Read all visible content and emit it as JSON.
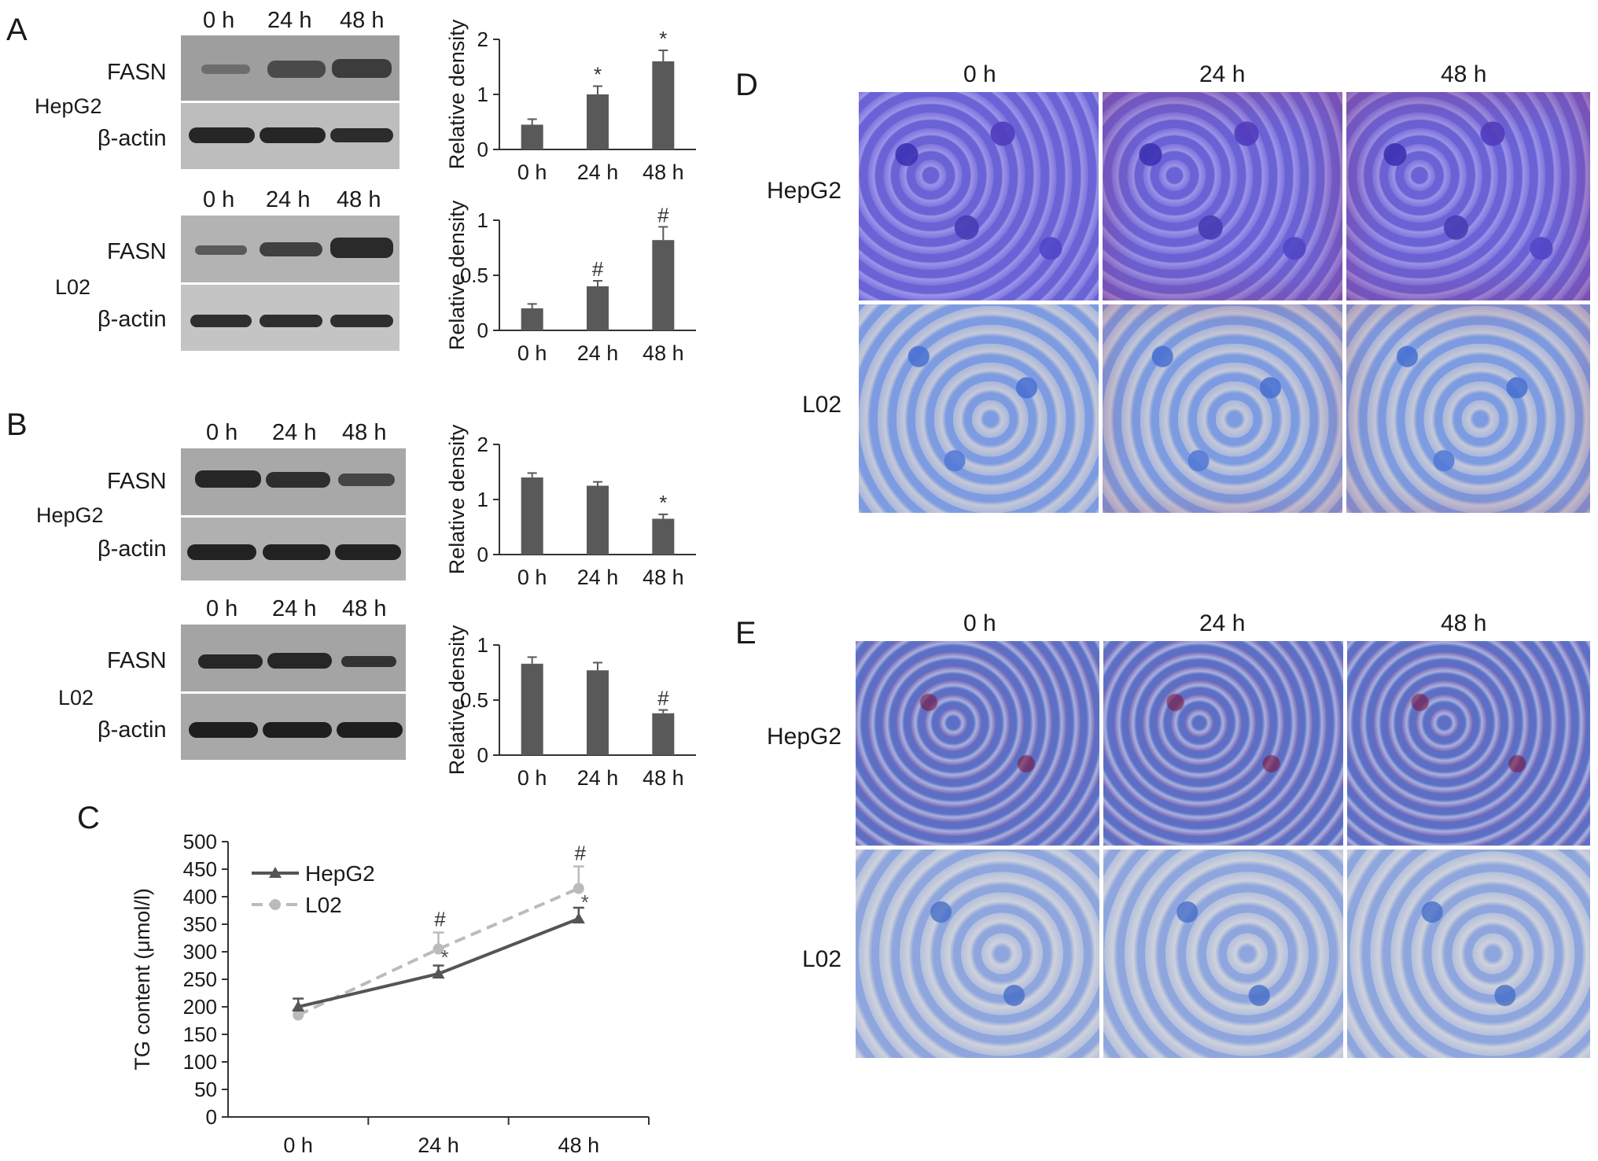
{
  "panels": {
    "A": "A",
    "B": "B",
    "C": "C",
    "D": "D",
    "E": "E"
  },
  "timepoints": [
    "0 h",
    "24 h",
    "48 h"
  ],
  "proteins": {
    "top": "FASN",
    "bottom": "β-actin"
  },
  "cells": {
    "hep": "HepG2",
    "l02": "L02"
  },
  "bar_ylabel": "Relative density",
  "colors": {
    "bar": "#595959",
    "hepg2_line": "#555555",
    "l02_line": "#bbbbbb",
    "axis": "#333333"
  },
  "chart_data": [
    {
      "type": "bar",
      "id": "A-HepG2",
      "categories": [
        "0 h",
        "24 h",
        "48 h"
      ],
      "values": [
        0.45,
        1.0,
        1.6
      ],
      "errors": [
        0.1,
        0.15,
        0.2
      ],
      "ylim": [
        0,
        2
      ],
      "yticks": [
        "0",
        "1",
        "2"
      ],
      "ylabel": "Relative density",
      "annotations": [
        "",
        "*",
        "*"
      ]
    },
    {
      "type": "bar",
      "id": "A-L02",
      "categories": [
        "0 h",
        "24 h",
        "48 h"
      ],
      "values": [
        0.2,
        0.4,
        0.82
      ],
      "errors": [
        0.04,
        0.05,
        0.12
      ],
      "ylim": [
        0,
        1
      ],
      "yticks": [
        "0",
        "0.5",
        "1"
      ],
      "ylabel": "Relative density",
      "annotations": [
        "",
        "#",
        "#"
      ]
    },
    {
      "type": "bar",
      "id": "B-HepG2",
      "categories": [
        "0 h",
        "24 h",
        "48 h"
      ],
      "values": [
        1.4,
        1.25,
        0.65
      ],
      "errors": [
        0.08,
        0.07,
        0.08
      ],
      "ylim": [
        0,
        2
      ],
      "yticks": [
        "0",
        "1",
        "2"
      ],
      "ylabel": "Relative density",
      "annotations": [
        "",
        "",
        "*"
      ]
    },
    {
      "type": "bar",
      "id": "B-L02",
      "categories": [
        "0 h",
        "24 h",
        "48 h"
      ],
      "values": [
        0.83,
        0.77,
        0.38
      ],
      "errors": [
        0.06,
        0.07,
        0.03
      ],
      "ylim": [
        0,
        1
      ],
      "yticks": [
        "0",
        "0.5",
        "1"
      ],
      "ylabel": "Relative density",
      "annotations": [
        "",
        "",
        "#"
      ]
    },
    {
      "type": "line",
      "id": "C",
      "categories": [
        "0 h",
        "24 h",
        "48 h"
      ],
      "ylabel": "TG content (μmol/l)",
      "ylim": [
        0,
        500
      ],
      "yticks": [
        "0",
        "50",
        "100",
        "150",
        "200",
        "250",
        "300",
        "350",
        "400",
        "450",
        "500"
      ],
      "legend_position": "top-left",
      "series": [
        {
          "name": "HepG2",
          "values": [
            200,
            260,
            360
          ],
          "errors": [
            15,
            15,
            20
          ],
          "annotations": [
            "",
            "*",
            "*"
          ],
          "color": "#555555",
          "dashed": false,
          "marker": "triangle"
        },
        {
          "name": "L02",
          "values": [
            185,
            305,
            415
          ],
          "errors": [
            10,
            30,
            40
          ],
          "annotations": [
            "",
            "#",
            "#"
          ],
          "color": "#bbbbbb",
          "dashed": true,
          "marker": "circle"
        }
      ]
    }
  ]
}
